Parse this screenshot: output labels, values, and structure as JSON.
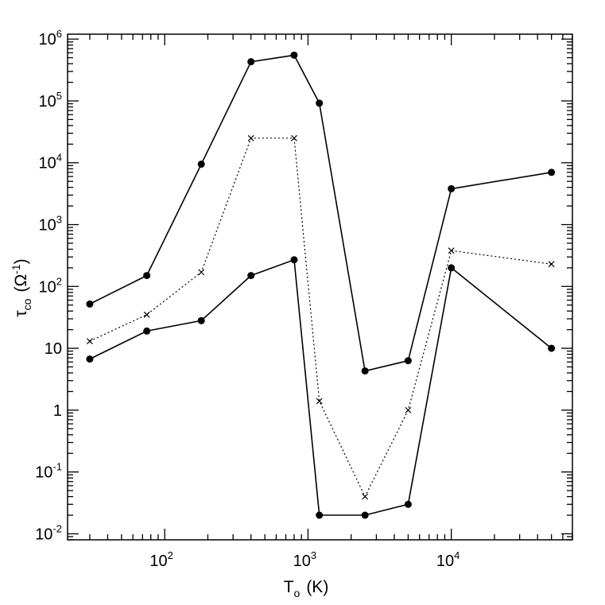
{
  "chart_data": {
    "type": "line",
    "xscale": "log",
    "yscale": "log",
    "xlim": [
      21,
      70000
    ],
    "ylim": [
      0.008,
      1200000
    ],
    "grid": false,
    "xlabel": {
      "main": "T",
      "sub": "o",
      "rest": "(K)"
    },
    "ylabel": {
      "main": "τ",
      "sub": "co",
      "rest": "(Ω",
      "sup": "-1",
      "close": ")"
    },
    "x_ticks": [
      {
        "value": 100,
        "base": "10",
        "exp": "2"
      },
      {
        "value": 1000,
        "base": "10",
        "exp": "3"
      },
      {
        "value": 10000,
        "base": "10",
        "exp": "4"
      }
    ],
    "y_ticks": [
      {
        "value": 0.01,
        "base": "10",
        "exp": "-2"
      },
      {
        "value": 0.1,
        "base": "10",
        "exp": "-1"
      },
      {
        "value": 1,
        "base": "1",
        "exp": ""
      },
      {
        "value": 10,
        "base": "10",
        "exp": ""
      },
      {
        "value": 100,
        "base": "10",
        "exp": "2"
      },
      {
        "value": 1000,
        "base": "10",
        "exp": "3"
      },
      {
        "value": 10000,
        "base": "10",
        "exp": "4"
      },
      {
        "value": 100000,
        "base": "10",
        "exp": "5"
      },
      {
        "value": 1000000,
        "base": "10",
        "exp": "6"
      }
    ],
    "x": [
      30,
      75,
      180,
      400,
      800,
      1200,
      2500,
      5000,
      10000,
      50000
    ],
    "series": [
      {
        "style": "solid",
        "marker": "dot",
        "values": [
          52,
          150,
          9500,
          430000,
          550000,
          92000,
          4.3,
          6.3,
          3800,
          7000
        ]
      },
      {
        "style": "dotted",
        "marker": "cross",
        "values": [
          13,
          35,
          170,
          25000,
          25000,
          1.4,
          0.04,
          1.0,
          380,
          230
        ]
      },
      {
        "style": "solid",
        "marker": "dot",
        "values": [
          6.7,
          19,
          28,
          150,
          270,
          0.02,
          0.02,
          0.03,
          200,
          10
        ]
      }
    ]
  }
}
